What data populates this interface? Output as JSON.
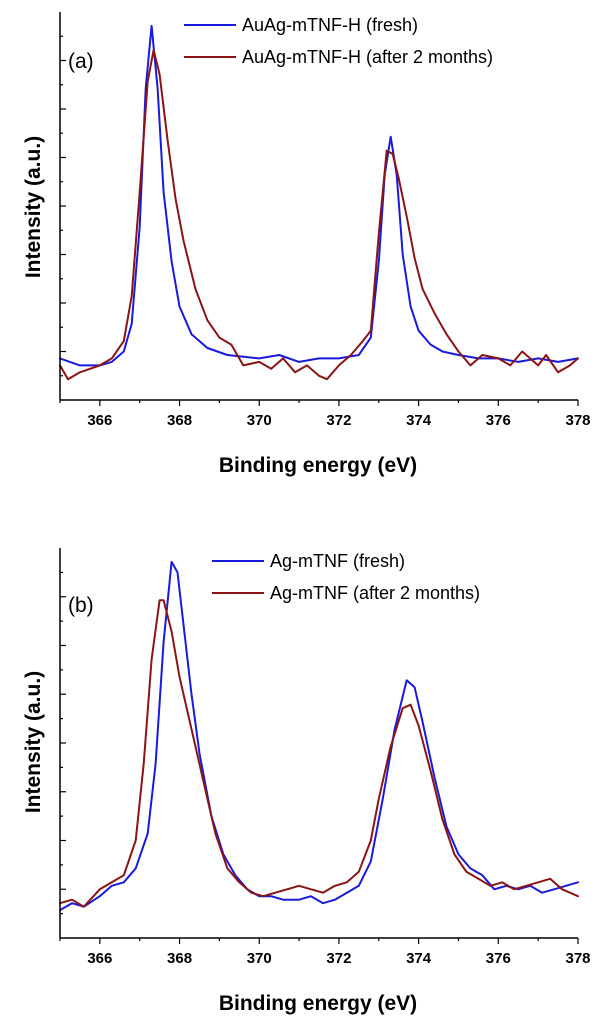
{
  "chart_data": [
    {
      "type": "line",
      "panel_label": "(a)",
      "xlabel": "Binding energy (eV)",
      "ylabel": "Intensity (a.u.)",
      "xlim": [
        365,
        378
      ],
      "ylim": [
        -0.1,
        1.02
      ],
      "xticks": [
        366,
        368,
        370,
        372,
        374,
        376,
        378
      ],
      "y_tick_labels_shown": false,
      "grid": false,
      "legend_position": "top-right",
      "colors": {
        "fresh": "#1a1adc",
        "aged": "#8b1414"
      },
      "series": [
        {
          "name": "AuAg-mTNF-H (fresh)",
          "color": "#1a1adc",
          "points": [
            [
              365.0,
              0.02
            ],
            [
              365.5,
              0.0
            ],
            [
              366.0,
              0.0
            ],
            [
              366.3,
              0.01
            ],
            [
              366.6,
              0.04
            ],
            [
              366.8,
              0.12
            ],
            [
              367.0,
              0.4
            ],
            [
              367.15,
              0.8
            ],
            [
              367.3,
              0.98
            ],
            [
              367.45,
              0.8
            ],
            [
              367.6,
              0.5
            ],
            [
              367.8,
              0.3
            ],
            [
              368.0,
              0.17
            ],
            [
              368.3,
              0.09
            ],
            [
              368.7,
              0.05
            ],
            [
              369.2,
              0.03
            ],
            [
              370.0,
              0.02
            ],
            [
              370.5,
              0.03
            ],
            [
              371.0,
              0.01
            ],
            [
              371.5,
              0.02
            ],
            [
              372.0,
              0.02
            ],
            [
              372.5,
              0.03
            ],
            [
              372.8,
              0.08
            ],
            [
              373.0,
              0.3
            ],
            [
              373.15,
              0.55
            ],
            [
              373.3,
              0.66
            ],
            [
              373.45,
              0.55
            ],
            [
              373.6,
              0.32
            ],
            [
              373.8,
              0.17
            ],
            [
              374.0,
              0.1
            ],
            [
              374.3,
              0.06
            ],
            [
              374.6,
              0.04
            ],
            [
              375.0,
              0.03
            ],
            [
              375.5,
              0.02
            ],
            [
              376.0,
              0.02
            ],
            [
              376.5,
              0.01
            ],
            [
              377.0,
              0.02
            ],
            [
              377.5,
              0.01
            ],
            [
              378.0,
              0.02
            ]
          ]
        },
        {
          "name": "AuAg-mTNF-H (after 2 months)",
          "color": "#8b1414",
          "points": [
            [
              365.0,
              0.0
            ],
            [
              365.2,
              -0.04
            ],
            [
              365.5,
              -0.02
            ],
            [
              366.0,
              0.0
            ],
            [
              366.3,
              0.02
            ],
            [
              366.6,
              0.07
            ],
            [
              366.8,
              0.2
            ],
            [
              367.0,
              0.5
            ],
            [
              367.2,
              0.82
            ],
            [
              367.35,
              0.91
            ],
            [
              367.5,
              0.84
            ],
            [
              367.7,
              0.65
            ],
            [
              367.9,
              0.48
            ],
            [
              368.1,
              0.36
            ],
            [
              368.4,
              0.22
            ],
            [
              368.7,
              0.13
            ],
            [
              369.0,
              0.08
            ],
            [
              369.3,
              0.06
            ],
            [
              369.6,
              0.0
            ],
            [
              370.0,
              0.01
            ],
            [
              370.3,
              -0.01
            ],
            [
              370.6,
              0.02
            ],
            [
              370.9,
              -0.02
            ],
            [
              371.2,
              0.0
            ],
            [
              371.5,
              -0.03
            ],
            [
              371.7,
              -0.04
            ],
            [
              372.0,
              0.0
            ],
            [
              372.3,
              0.03
            ],
            [
              372.6,
              0.07
            ],
            [
              372.8,
              0.1
            ],
            [
              373.0,
              0.38
            ],
            [
              373.2,
              0.62
            ],
            [
              373.35,
              0.61
            ],
            [
              373.5,
              0.54
            ],
            [
              373.7,
              0.43
            ],
            [
              373.9,
              0.31
            ],
            [
              374.1,
              0.22
            ],
            [
              374.4,
              0.15
            ],
            [
              374.7,
              0.09
            ],
            [
              375.0,
              0.04
            ],
            [
              375.3,
              0.0
            ],
            [
              375.6,
              0.03
            ],
            [
              376.0,
              0.02
            ],
            [
              376.3,
              0.0
            ],
            [
              376.6,
              0.04
            ],
            [
              377.0,
              0.0
            ],
            [
              377.2,
              0.03
            ],
            [
              377.5,
              -0.02
            ],
            [
              377.8,
              0.0
            ],
            [
              378.0,
              0.02
            ]
          ]
        }
      ]
    },
    {
      "type": "line",
      "panel_label": "(b)",
      "xlabel": "Binding energy (eV)",
      "ylabel": "Intensity (a.u.)",
      "xlim": [
        365,
        378
      ],
      "ylim": [
        -0.1,
        1.02
      ],
      "xticks": [
        366,
        368,
        370,
        372,
        374,
        376,
        378
      ],
      "y_tick_labels_shown": false,
      "grid": false,
      "legend_position": "top-right",
      "colors": {
        "fresh": "#1a1adc",
        "aged": "#8b1414"
      },
      "series": [
        {
          "name": "Ag-mTNF (fresh)",
          "color": "#1a1adc",
          "points": [
            [
              365.0,
              -0.02
            ],
            [
              365.3,
              0.0
            ],
            [
              365.6,
              -0.01
            ],
            [
              366.0,
              0.02
            ],
            [
              366.3,
              0.05
            ],
            [
              366.6,
              0.06
            ],
            [
              366.9,
              0.1
            ],
            [
              367.2,
              0.2
            ],
            [
              367.4,
              0.4
            ],
            [
              367.6,
              0.75
            ],
            [
              367.8,
              0.98
            ],
            [
              367.95,
              0.95
            ],
            [
              368.1,
              0.8
            ],
            [
              368.3,
              0.6
            ],
            [
              368.5,
              0.43
            ],
            [
              368.8,
              0.25
            ],
            [
              369.1,
              0.14
            ],
            [
              369.4,
              0.08
            ],
            [
              369.7,
              0.04
            ],
            [
              370.0,
              0.02
            ],
            [
              370.3,
              0.02
            ],
            [
              370.6,
              0.01
            ],
            [
              371.0,
              0.01
            ],
            [
              371.3,
              0.02
            ],
            [
              371.6,
              0.0
            ],
            [
              371.9,
              0.01
            ],
            [
              372.2,
              0.03
            ],
            [
              372.5,
              0.05
            ],
            [
              372.8,
              0.12
            ],
            [
              373.1,
              0.3
            ],
            [
              373.4,
              0.5
            ],
            [
              373.7,
              0.64
            ],
            [
              373.9,
              0.62
            ],
            [
              374.1,
              0.52
            ],
            [
              374.4,
              0.36
            ],
            [
              374.7,
              0.22
            ],
            [
              375.0,
              0.14
            ],
            [
              375.3,
              0.1
            ],
            [
              375.6,
              0.08
            ],
            [
              375.9,
              0.04
            ],
            [
              376.2,
              0.05
            ],
            [
              376.5,
              0.04
            ],
            [
              376.8,
              0.05
            ],
            [
              377.1,
              0.03
            ],
            [
              377.4,
              0.04
            ],
            [
              377.7,
              0.05
            ],
            [
              378.0,
              0.06
            ]
          ]
        },
        {
          "name": "Ag-mTNF (after 2 months)",
          "color": "#8b1414",
          "points": [
            [
              365.0,
              0.0
            ],
            [
              365.3,
              0.01
            ],
            [
              365.6,
              -0.01
            ],
            [
              366.0,
              0.04
            ],
            [
              366.3,
              0.06
            ],
            [
              366.6,
              0.08
            ],
            [
              366.9,
              0.18
            ],
            [
              367.1,
              0.4
            ],
            [
              367.3,
              0.7
            ],
            [
              367.5,
              0.87
            ],
            [
              367.6,
              0.87
            ],
            [
              367.8,
              0.78
            ],
            [
              368.0,
              0.65
            ],
            [
              368.3,
              0.5
            ],
            [
              368.6,
              0.35
            ],
            [
              368.9,
              0.2
            ],
            [
              369.2,
              0.1
            ],
            [
              369.5,
              0.06
            ],
            [
              369.8,
              0.03
            ],
            [
              370.1,
              0.02
            ],
            [
              370.4,
              0.03
            ],
            [
              370.7,
              0.04
            ],
            [
              371.0,
              0.05
            ],
            [
              371.3,
              0.04
            ],
            [
              371.6,
              0.03
            ],
            [
              371.9,
              0.05
            ],
            [
              372.2,
              0.06
            ],
            [
              372.5,
              0.09
            ],
            [
              372.8,
              0.18
            ],
            [
              373.0,
              0.3
            ],
            [
              373.3,
              0.45
            ],
            [
              373.6,
              0.56
            ],
            [
              373.8,
              0.57
            ],
            [
              374.0,
              0.51
            ],
            [
              374.3,
              0.38
            ],
            [
              374.6,
              0.24
            ],
            [
              374.9,
              0.14
            ],
            [
              375.2,
              0.09
            ],
            [
              375.5,
              0.07
            ],
            [
              375.8,
              0.05
            ],
            [
              376.1,
              0.06
            ],
            [
              376.4,
              0.04
            ],
            [
              376.7,
              0.05
            ],
            [
              377.0,
              0.06
            ],
            [
              377.3,
              0.07
            ],
            [
              377.6,
              0.04
            ],
            [
              377.8,
              0.03
            ],
            [
              378.0,
              0.02
            ]
          ]
        }
      ]
    }
  ]
}
